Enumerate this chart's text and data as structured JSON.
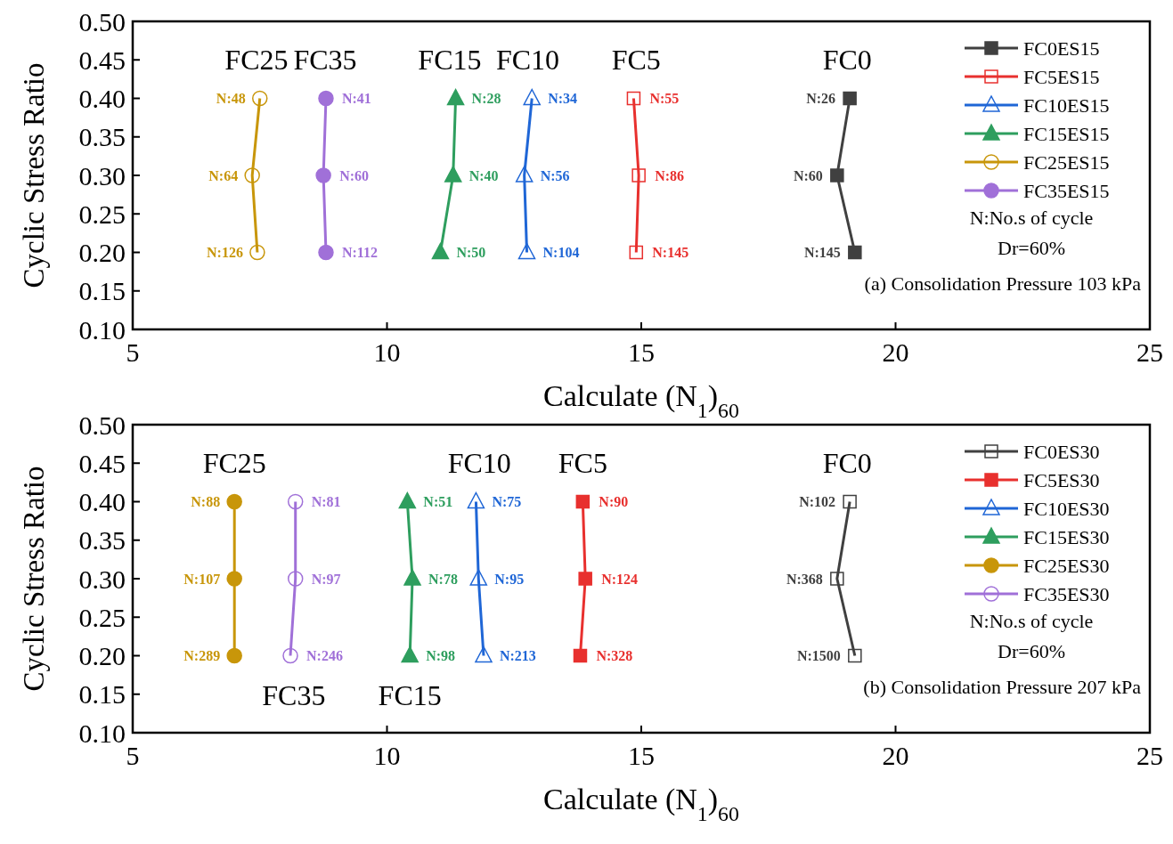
{
  "chart_data": [
    {
      "type": "line",
      "xlabel": "Calculate (N$_{1}$)$_{60}$",
      "ylabel": "Cyclic Stress Ratio",
      "xlim": [
        5,
        25
      ],
      "xticks": [
        5,
        10,
        15,
        20,
        25
      ],
      "ylim": [
        0.1,
        0.5
      ],
      "yticks": [
        {
          "value": 0.1,
          "label": "0.10"
        },
        {
          "value": 0.15,
          "label": "0.15"
        },
        {
          "value": 0.2,
          "label": "0.20"
        },
        {
          "value": 0.25,
          "label": "0.25"
        },
        {
          "value": 0.3,
          "label": "0.30"
        },
        {
          "value": 0.35,
          "label": "0.35"
        },
        {
          "value": 0.4,
          "label": "0.40"
        },
        {
          "value": 0.45,
          "label": "0.45"
        },
        {
          "value": 0.5,
          "label": "0.50"
        }
      ],
      "grid": false,
      "legend": "top right",
      "line_style": "solid",
      "series": [
        {
          "name": "FC0ES15",
          "color": "#404040",
          "marker": "square",
          "x": [
            19.1,
            18.85,
            19.2
          ],
          "values": [
            0.4,
            0.3,
            0.2
          ]
        },
        {
          "name": "FC5ES15",
          "color": "#e8302e",
          "marker": "square",
          "x": [
            14.85,
            14.95,
            14.9
          ],
          "values": [
            0.4,
            0.3,
            0.2
          ]
        },
        {
          "name": "FC10ES15",
          "color": "#1f66d6",
          "marker": "triangle",
          "x": [
            12.85,
            12.7,
            12.75
          ],
          "values": [
            0.4,
            0.3,
            0.2
          ]
        },
        {
          "name": "FC15ES15",
          "color": "#2e9e5e",
          "marker": "triangle",
          "x": [
            11.35,
            11.3,
            11.05
          ],
          "values": [
            0.4,
            0.3,
            0.2
          ]
        },
        {
          "name": "FC25ES15",
          "color": "#c8960a",
          "marker": "circle",
          "x": [
            7.5,
            7.35,
            7.45
          ],
          "values": [
            0.4,
            0.3,
            0.2
          ]
        },
        {
          "name": "FC35ES15",
          "color": "#a070d8",
          "marker": "circle",
          "x": [
            8.8,
            8.75,
            8.8
          ],
          "values": [
            0.4,
            0.3,
            0.2
          ]
        }
      ],
      "annotations": [
        "FC0",
        "FC5",
        "FC10",
        "FC15",
        "FC25",
        "FC35",
        {
          "text": "N:26",
          "x": 19.1,
          "y": 0.4
        },
        {
          "text": "N:60",
          "x": 18.85,
          "y": 0.3
        },
        {
          "text": "N:145",
          "x": 19.2,
          "y": 0.2
        },
        {
          "text": "N:55",
          "x": 14.85,
          "y": 0.4
        },
        {
          "text": "N:86",
          "x": 14.95,
          "y": 0.3
        },
        {
          "text": "N:145",
          "x": 14.9,
          "y": 0.2
        },
        {
          "text": "N:34",
          "x": 12.85,
          "y": 0.4
        },
        {
          "text": "N:56",
          "x": 12.7,
          "y": 0.3
        },
        {
          "text": "N:104",
          "x": 12.75,
          "y": 0.2
        },
        {
          "text": "N:28",
          "x": 11.35,
          "y": 0.4
        },
        {
          "text": "N:40",
          "x": 11.3,
          "y": 0.3
        },
        {
          "text": "N:50",
          "x": 11.05,
          "y": 0.2
        },
        {
          "text": "N:48",
          "x": 7.5,
          "y": 0.4
        },
        {
          "text": "N:64",
          "x": 7.35,
          "y": 0.3
        },
        {
          "text": "N:126",
          "x": 7.45,
          "y": 0.2
        },
        {
          "text": "N:41",
          "x": 8.8,
          "y": 0.4
        },
        {
          "text": "N:60",
          "x": 8.75,
          "y": 0.3
        },
        {
          "text": "N:112",
          "x": 8.8,
          "y": 0.2
        },
        "N:No.s of cycle",
        "Dr=60%",
        "(a) Consolidation Pressure 103 kPa"
      ]
    },
    {
      "type": "line",
      "xlabel": "Calculate (N$_{1}$)$_{60}$",
      "ylabel": "Cyclic Stress Ratio",
      "xlim": [
        5,
        25
      ],
      "xticks": [
        5,
        10,
        15,
        20,
        25
      ],
      "ylim": [
        0.1,
        0.5
      ],
      "yticks": [
        {
          "value": 0.1,
          "label": "0.10"
        },
        {
          "value": 0.15,
          "label": "0.15"
        },
        {
          "value": 0.2,
          "label": "0.20"
        },
        {
          "value": 0.25,
          "label": "0.25"
        },
        {
          "value": 0.3,
          "label": "0.30"
        },
        {
          "value": 0.35,
          "label": "0.35"
        },
        {
          "value": 0.4,
          "label": "0.40"
        },
        {
          "value": 0.45,
          "label": "0.45"
        },
        {
          "value": 0.5,
          "label": "0.50"
        }
      ],
      "grid": false,
      "legend": "top right",
      "line_style": "solid",
      "series": [
        {
          "name": "FC0ES30",
          "color": "#404040",
          "marker": "square",
          "x": [
            19.1,
            18.85,
            19.2
          ],
          "values": [
            0.4,
            0.3,
            0.2
          ]
        },
        {
          "name": "FC5ES30",
          "color": "#e8302e",
          "marker": "square",
          "x": [
            13.85,
            13.9,
            13.8
          ],
          "values": [
            0.4,
            0.3,
            0.2
          ]
        },
        {
          "name": "FC10ES30",
          "color": "#1f66d6",
          "marker": "triangle",
          "x": [
            11.75,
            11.8,
            11.9
          ],
          "values": [
            0.4,
            0.3,
            0.2
          ]
        },
        {
          "name": "FC15ES30",
          "color": "#2e9e5e",
          "marker": "triangle",
          "x": [
            10.4,
            10.5,
            10.45
          ],
          "values": [
            0.4,
            0.3,
            0.2
          ]
        },
        {
          "name": "FC25ES30",
          "color": "#c8960a",
          "marker": "circle",
          "x": [
            7.0,
            7.0,
            7.0
          ],
          "values": [
            0.4,
            0.3,
            0.2
          ]
        },
        {
          "name": "FC35ES30",
          "color": "#a070d8",
          "marker": "circle",
          "x": [
            8.2,
            8.2,
            8.1
          ],
          "values": [
            0.4,
            0.3,
            0.2
          ]
        }
      ],
      "annotations": [
        "FC0",
        "FC5",
        "FC10",
        "FC15",
        "FC25",
        "FC35",
        {
          "text": "N:102",
          "x": 19.1,
          "y": 0.4
        },
        {
          "text": "N:368",
          "x": 18.85,
          "y": 0.3
        },
        {
          "text": "N:1500",
          "x": 19.2,
          "y": 0.2
        },
        {
          "text": "N:90",
          "x": 13.85,
          "y": 0.4
        },
        {
          "text": "N:124",
          "x": 13.9,
          "y": 0.3
        },
        {
          "text": "N:328",
          "x": 13.8,
          "y": 0.2
        },
        {
          "text": "N:75",
          "x": 11.75,
          "y": 0.4
        },
        {
          "text": "N:95",
          "x": 11.8,
          "y": 0.3
        },
        {
          "text": "N:213",
          "x": 11.9,
          "y": 0.2
        },
        {
          "text": "N:51",
          "x": 10.4,
          "y": 0.4
        },
        {
          "text": "N:78",
          "x": 10.5,
          "y": 0.3
        },
        {
          "text": "N:98",
          "x": 10.45,
          "y": 0.2
        },
        {
          "text": "N:88",
          "x": 7.0,
          "y": 0.4
        },
        {
          "text": "N:107",
          "x": 7.0,
          "y": 0.3
        },
        {
          "text": "N:289",
          "x": 7.0,
          "y": 0.2
        },
        {
          "text": "N:81",
          "x": 8.2,
          "y": 0.4
        },
        {
          "text": "N:97",
          "x": 8.2,
          "y": 0.3
        },
        {
          "text": "N:246",
          "x": 8.1,
          "y": 0.2
        },
        "N:No.s of cycle",
        "Dr=60%",
        "(b) Consolidation Pressure 207 kPa"
      ]
    }
  ]
}
